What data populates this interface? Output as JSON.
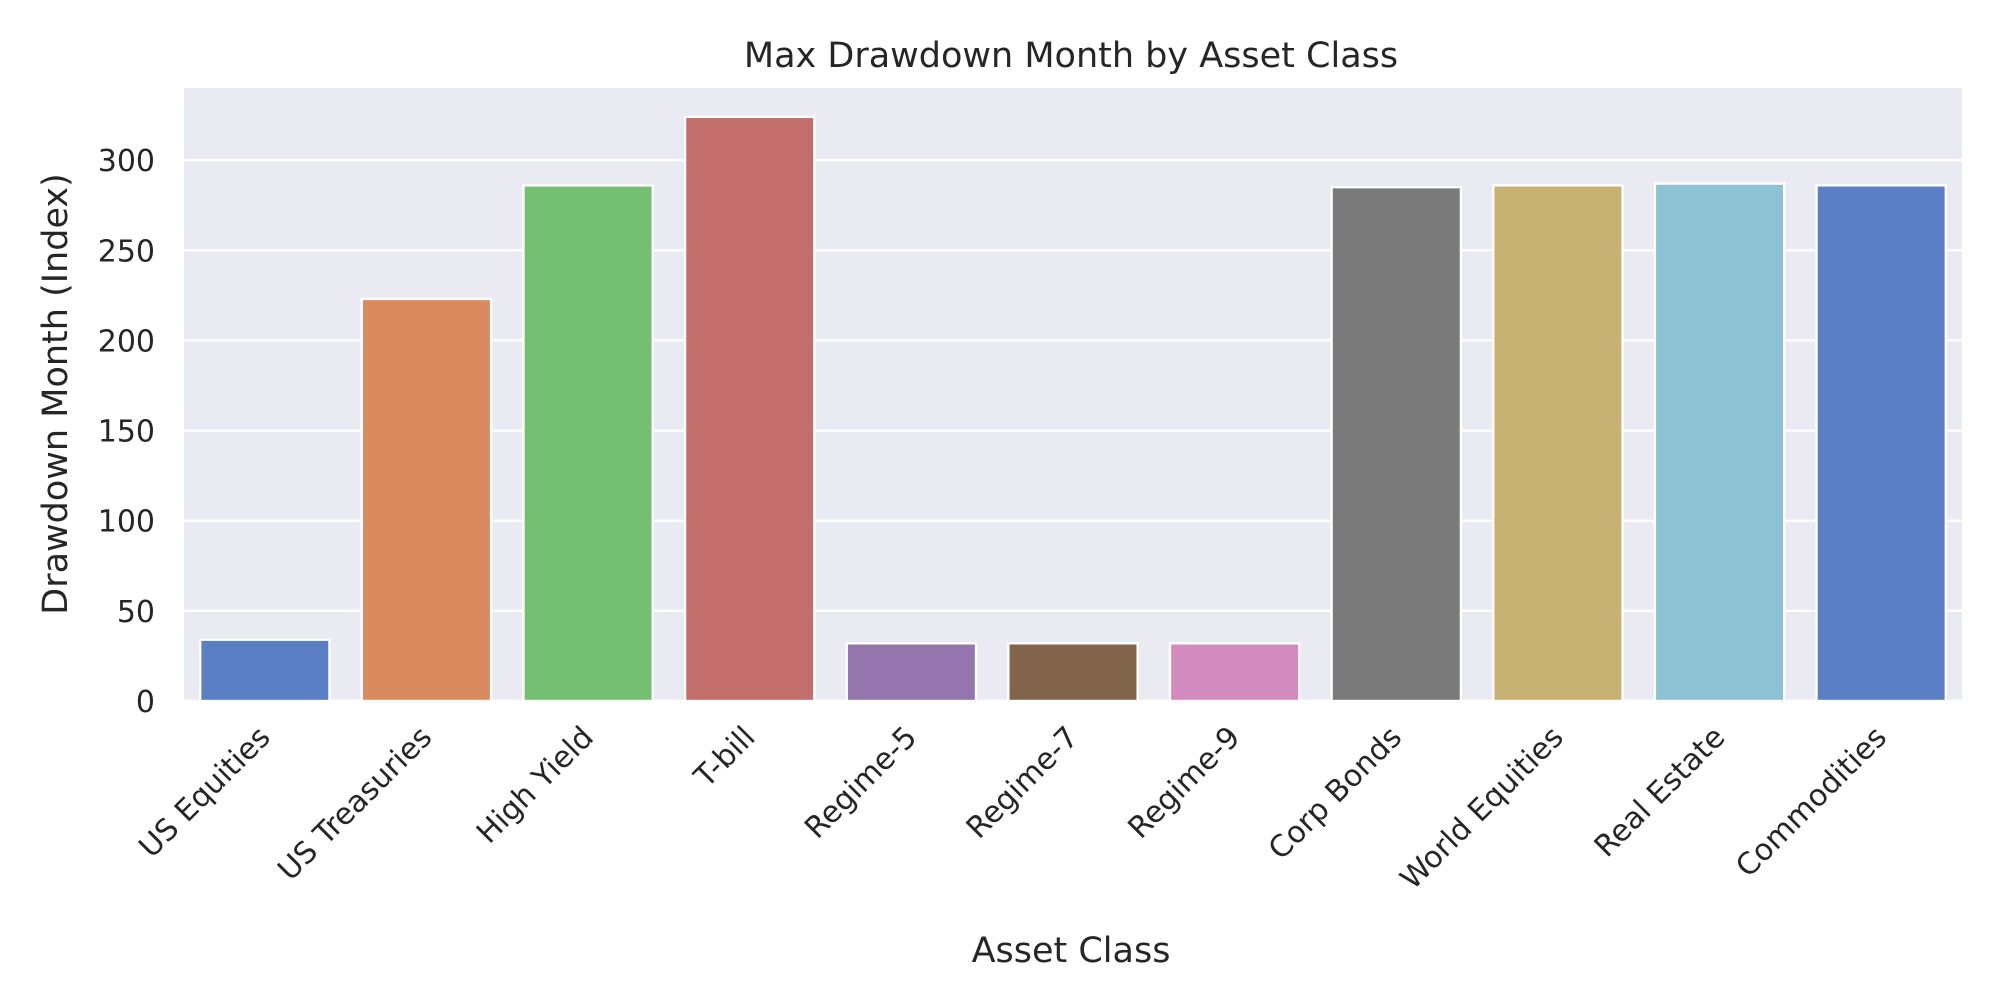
{
  "chart_data": {
    "type": "bar",
    "title": "Max Drawdown Month by Asset Class",
    "xlabel": "Asset Class",
    "ylabel": "Drawdown Month (Index)",
    "ylim": [
      0,
      340
    ],
    "yticks": [
      0,
      50,
      100,
      150,
      200,
      250,
      300
    ],
    "grid": true,
    "background": "#eaeaf2",
    "categories": [
      "US Equities",
      "US Treasuries",
      "High Yield",
      "T-bill",
      "Regime-5",
      "Regime-7",
      "Regime-9",
      "Corp Bonds",
      "World Equities",
      "Real Estate",
      "Commodities"
    ],
    "values": [
      34,
      223,
      286,
      324,
      32,
      32,
      32,
      285,
      286,
      287,
      286
    ],
    "colors": [
      "#5b7fc4",
      "#d98b5f",
      "#74bf71",
      "#c46d6d",
      "#9575ae",
      "#82644a",
      "#d38bbe",
      "#7a7a7a",
      "#c8b273",
      "#8dc1d4",
      "#5b7fc4"
    ]
  }
}
